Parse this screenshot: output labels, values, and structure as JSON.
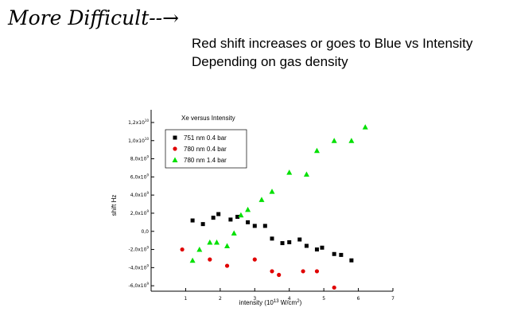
{
  "slide": {
    "heading": "More Difficult--→",
    "subtitle_line1": "Red shift increases or goes to Blue vs Intensity",
    "subtitle_line2": "Depending on gas density"
  },
  "chart_data": {
    "type": "scatter",
    "title": "Xe versus Intensity",
    "xlabel": "intensity (10^13 W/cm^2)",
    "ylabel": "shift Hz",
    "xlim": [
      0,
      7
    ],
    "ylim": [
      -6600000000.0,
      13400000000.0
    ],
    "x_ticks": [
      1,
      2,
      3,
      4,
      5,
      6,
      7
    ],
    "y_ticks": [
      {
        "value": 12000000000.0,
        "label": "1,2x10^10"
      },
      {
        "value": 10000000000.0,
        "label": "1,0x10^10"
      },
      {
        "value": 8000000000.0,
        "label": "8,0x10^9"
      },
      {
        "value": 6000000000.0,
        "label": "6,0x10^9"
      },
      {
        "value": 4000000000.0,
        "label": "4,0x10^9"
      },
      {
        "value": 2000000000.0,
        "label": "2,0x10^9"
      },
      {
        "value": 0,
        "label": "0,0"
      },
      {
        "value": -2000000000.0,
        "label": "-2,0x10^9"
      },
      {
        "value": -4000000000.0,
        "label": "-4,0x10^9"
      },
      {
        "value": -6000000000.0,
        "label": "-6,0x10^9"
      }
    ],
    "grid": false,
    "legend_position": "top-left",
    "series": [
      {
        "name": "751 nm 0.4 bar",
        "marker": "square",
        "color": "#000000",
        "points": [
          [
            1.2,
            1200000000.0
          ],
          [
            1.5,
            800000000.0
          ],
          [
            1.8,
            1500000000.0
          ],
          [
            1.95,
            1900000000.0
          ],
          [
            2.3,
            1300000000.0
          ],
          [
            2.5,
            1600000000.0
          ],
          [
            2.8,
            1000000000.0
          ],
          [
            3.0,
            600000000.0
          ],
          [
            3.3,
            600000000.0
          ],
          [
            3.5,
            -800000000.0
          ],
          [
            3.8,
            -1300000000.0
          ],
          [
            4.0,
            -1200000000.0
          ],
          [
            4.3,
            -900000000.0
          ],
          [
            4.5,
            -1600000000.0
          ],
          [
            4.8,
            -2000000000.0
          ],
          [
            4.95,
            -1800000000.0
          ],
          [
            5.3,
            -2500000000.0
          ],
          [
            5.5,
            -2600000000.0
          ],
          [
            5.8,
            -3200000000.0
          ]
        ]
      },
      {
        "name": "780 nm 0.4 bar",
        "marker": "circle",
        "color": "#e00000",
        "points": [
          [
            0.9,
            -2000000000.0
          ],
          [
            1.7,
            -3100000000.0
          ],
          [
            2.2,
            -3800000000.0
          ],
          [
            3.0,
            -3100000000.0
          ],
          [
            3.5,
            -4400000000.0
          ],
          [
            3.7,
            -4800000000.0
          ],
          [
            4.4,
            -4400000000.0
          ],
          [
            4.8,
            -4400000000.0
          ],
          [
            5.3,
            -6200000000.0
          ]
        ]
      },
      {
        "name": "780 nm 1.4 bar",
        "marker": "triangle",
        "color": "#00e000",
        "points": [
          [
            1.2,
            -3200000000.0
          ],
          [
            1.4,
            -2000000000.0
          ],
          [
            1.7,
            -1200000000.0
          ],
          [
            1.9,
            -1200000000.0
          ],
          [
            2.2,
            -1600000000.0
          ],
          [
            2.4,
            -200000000.0
          ],
          [
            2.6,
            1800000000.0
          ],
          [
            2.8,
            2400000000.0
          ],
          [
            3.2,
            3500000000.0
          ],
          [
            3.5,
            4400000000.0
          ],
          [
            4.0,
            6500000000.0
          ],
          [
            4.5,
            6300000000.0
          ],
          [
            4.8,
            8900000000.0
          ],
          [
            5.3,
            10000000000.0
          ],
          [
            5.8,
            10000000000.0
          ],
          [
            6.2,
            11500000000.0
          ]
        ]
      }
    ]
  }
}
